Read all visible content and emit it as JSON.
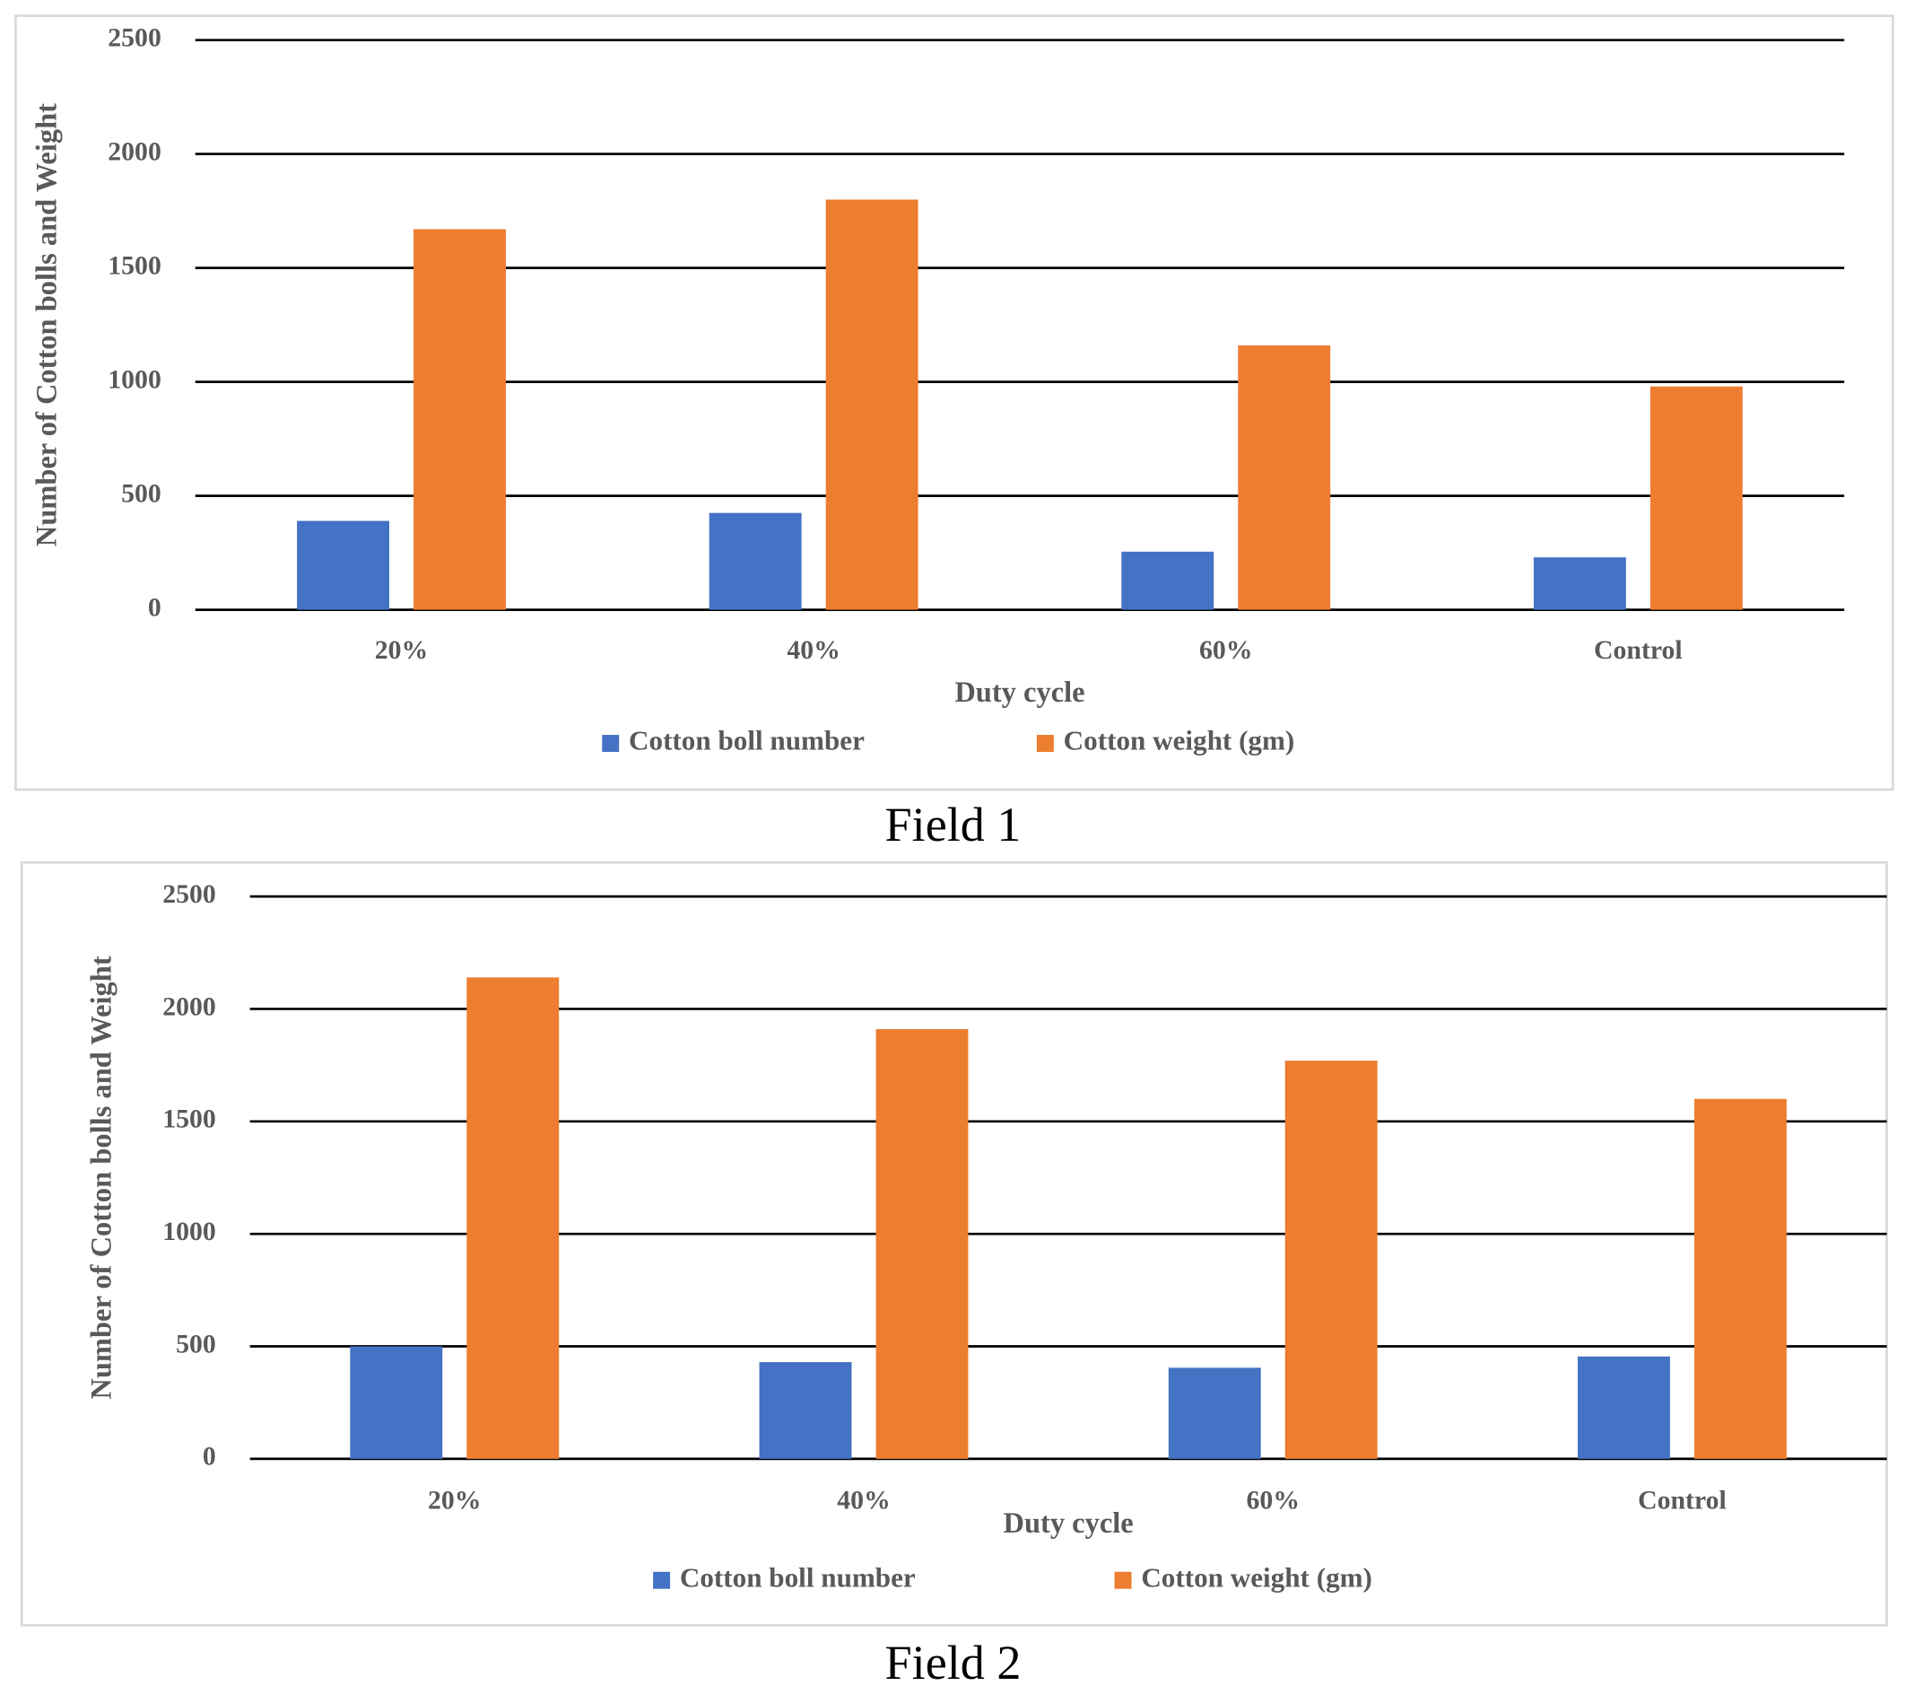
{
  "chart_data": [
    {
      "type": "bar",
      "caption": "Field 1",
      "x_label": "Duty cycle",
      "y_label": "Number of Cotton bolls and Weight",
      "categories": [
        "20%",
        "40%",
        "60%",
        "Control"
      ],
      "series": [
        {
          "name": "Cotton boll number",
          "color": "#4472c4",
          "values": [
            390,
            425,
            255,
            230
          ]
        },
        {
          "name": "Cotton weight (gm)",
          "color": "#ed7d31",
          "values": [
            1670,
            1800,
            1160,
            980
          ]
        }
      ],
      "ylim": [
        0,
        2500
      ],
      "yticks": [
        0,
        500,
        1000,
        1500,
        2000,
        2500
      ],
      "grid": true,
      "legend": "bottom"
    },
    {
      "type": "bar",
      "caption": "Field 2",
      "x_label": "Duty cycle",
      "y_label": "Number of Cotton bolls and Weight",
      "categories": [
        "20%",
        "40%",
        "60%",
        "Control"
      ],
      "series": [
        {
          "name": "Cotton boll number",
          "color": "#4472c4",
          "values": [
            500,
            430,
            405,
            455
          ]
        },
        {
          "name": "Cotton weight (gm)",
          "color": "#ed7d31",
          "values": [
            2140,
            1910,
            1770,
            1600
          ]
        }
      ],
      "ylim": [
        0,
        2500
      ],
      "yticks": [
        0,
        500,
        1000,
        1500,
        2000,
        2500
      ],
      "grid": true,
      "legend": "bottom"
    }
  ]
}
